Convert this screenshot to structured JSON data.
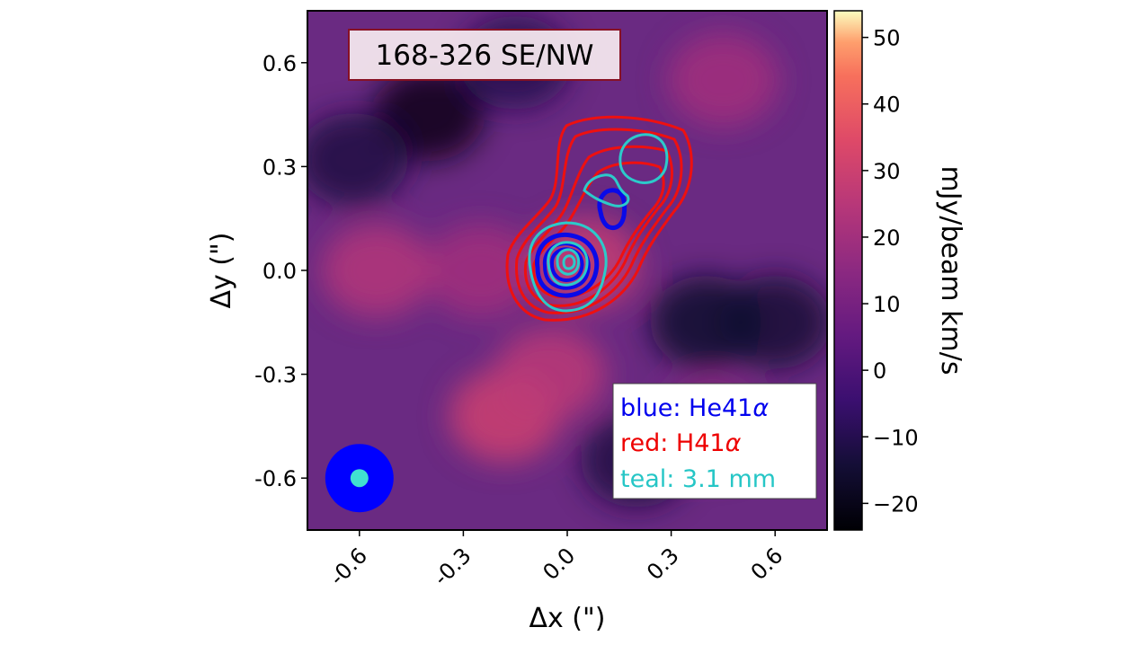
{
  "chart_data": {
    "type": "heatmap",
    "title": "168-326 SE/NW",
    "xlabel": "Δx (\")",
    "ylabel": "Δy (\")",
    "xlim": [
      -0.75,
      0.75
    ],
    "ylim": [
      -0.75,
      0.75
    ],
    "xticks": [
      -0.6,
      -0.3,
      0.0,
      0.3,
      0.6
    ],
    "xtick_labels": [
      "-0.6",
      "-0.3",
      "0.0",
      "0.3",
      "0.6"
    ],
    "yticks": [
      0.6,
      0.3,
      0.0,
      -0.3,
      -0.6
    ],
    "ytick_labels": [
      "0.6",
      "0.3",
      "0.0",
      "-0.3",
      "-0.6"
    ],
    "colormap": "magma",
    "colorbar": {
      "label": "mJy/beam km/s",
      "range": [
        -24,
        54
      ],
      "ticks": [
        50,
        40,
        30,
        20,
        10,
        0,
        -10,
        -20
      ],
      "tick_labels": [
        "50",
        "40",
        "30",
        "20",
        "10",
        "0",
        "−10",
        "−20"
      ]
    },
    "legend": {
      "placement": "bottom-right",
      "entries": [
        {
          "prefix": "blue: He41",
          "greek": "α",
          "color": "#0000ee"
        },
        {
          "prefix": "red: H41",
          "greek": "α",
          "color": "#ee0000"
        },
        {
          "prefix": "teal: 3.1 mm",
          "greek": "",
          "color": "#26c6c6"
        }
      ]
    },
    "beam": {
      "x": -0.6,
      "y": -0.6,
      "outer_color": "#0000ff",
      "inner_color": "#40e0d0"
    },
    "grid": false,
    "background_features": [
      {
        "x": -0.25,
        "y": 0.0,
        "value": 20
      },
      {
        "x": -0.55,
        "y": 0.0,
        "value": 24
      },
      {
        "x": -0.18,
        "y": -0.42,
        "value": 30
      },
      {
        "x": -0.05,
        "y": -0.3,
        "value": 26
      },
      {
        "x": 0.45,
        "y": 0.55,
        "value": 20
      },
      {
        "x": 0.42,
        "y": -0.45,
        "value": 16
      },
      {
        "x": 0.05,
        "y": 0.02,
        "value": 28
      },
      {
        "x": -0.4,
        "y": 0.45,
        "value": -20
      },
      {
        "x": -0.62,
        "y": 0.32,
        "value": -12
      },
      {
        "x": 0.6,
        "y": -0.15,
        "value": -14
      },
      {
        "x": 0.4,
        "y": -0.15,
        "value": -16
      },
      {
        "x": 0.2,
        "y": -0.55,
        "value": -12
      },
      {
        "x": -0.15,
        "y": 0.6,
        "value": -10
      }
    ]
  }
}
